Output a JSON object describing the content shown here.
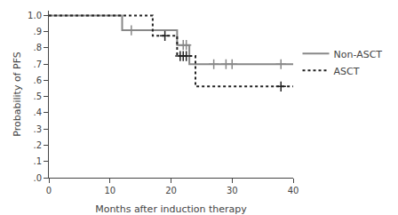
{
  "chart_data": {
    "type": "line",
    "xlabel": "Months after induction therapy",
    "ylabel": "Probability of PFS",
    "xlim": [
      0,
      40
    ],
    "ylim": [
      0.0,
      1.03
    ],
    "xticks": [
      0,
      10,
      20,
      30,
      40
    ],
    "yticks": [
      {
        "value": 0.0,
        "label": ".0"
      },
      {
        "value": 0.1,
        "label": ".1"
      },
      {
        "value": 0.2,
        "label": ".2"
      },
      {
        "value": 0.3,
        "label": ".3"
      },
      {
        "value": 0.4,
        "label": ".4"
      },
      {
        "value": 0.5,
        "label": ".5"
      },
      {
        "value": 0.6,
        "label": ".6"
      },
      {
        "value": 0.7,
        "label": ".7"
      },
      {
        "value": 0.8,
        "label": ".8"
      },
      {
        "value": 0.9,
        "label": ".9"
      },
      {
        "value": 1.0,
        "label": "1.0"
      }
    ],
    "grid": false,
    "legend": "right",
    "marker": "cross",
    "series": [
      {
        "name": "Non-ASCT",
        "color": "#888888",
        "line_style": "solid",
        "x": [
          0,
          12,
          12,
          21,
          21,
          23,
          23,
          40
        ],
        "values": [
          1.0,
          1.0,
          0.909,
          0.909,
          0.818,
          0.818,
          0.7,
          0.7
        ],
        "censor_x": [
          13.5,
          22,
          22.5,
          27,
          29,
          30,
          38
        ],
        "censor_values": [
          0.909,
          0.818,
          0.818,
          0.7,
          0.7,
          0.7,
          0.7
        ]
      },
      {
        "name": "ASCT",
        "color": "#222222",
        "line_style": "dotted",
        "x": [
          0,
          17,
          17,
          21,
          21,
          24,
          24,
          40
        ],
        "values": [
          1.0,
          1.0,
          0.875,
          0.875,
          0.75,
          0.75,
          0.5625,
          0.5625
        ],
        "censor_x": [
          19,
          21.5,
          22,
          22.5,
          38
        ],
        "censor_values": [
          0.875,
          0.75,
          0.75,
          0.75,
          0.5625
        ]
      }
    ]
  }
}
